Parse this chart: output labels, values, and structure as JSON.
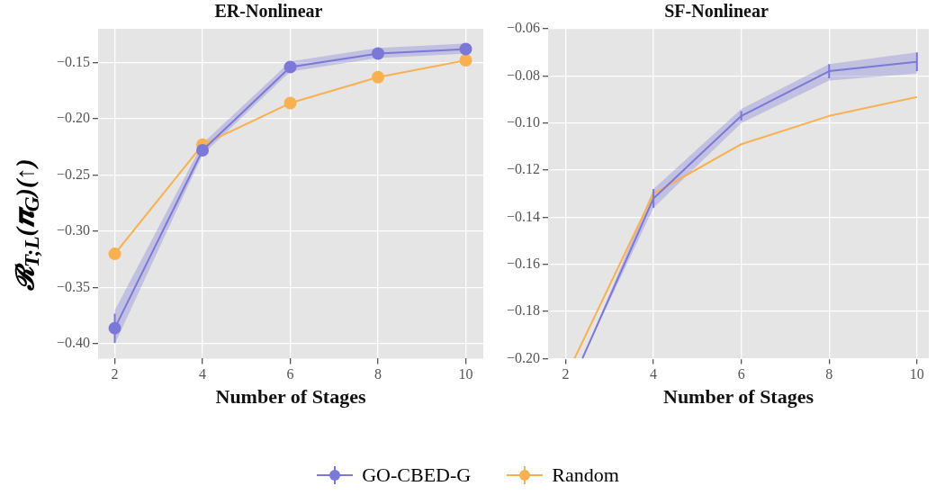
{
  "chart_data": [
    {
      "type": "line",
      "title": "ER-Nonlinear",
      "xlabel": "Number of Stages",
      "ylabel": "𝓡$_{T;L}$(𝝅$_{G}$)(↑)",
      "x": [
        2,
        4,
        6,
        8,
        10
      ],
      "xlim": [
        1.62,
        10.4
      ],
      "xticks": [
        2,
        4,
        6,
        8,
        10
      ],
      "ylim": [
        -0.413,
        -0.12
      ],
      "yticks": [
        {
          "value": -0.4,
          "label": "−0.40"
        },
        {
          "value": -0.35,
          "label": "−0.35"
        },
        {
          "value": -0.3,
          "label": "−0.30"
        },
        {
          "value": -0.25,
          "label": "−0.25"
        },
        {
          "value": -0.2,
          "label": "−0.20"
        },
        {
          "value": -0.15,
          "label": "−0.15"
        }
      ],
      "grid": true,
      "legend": "bottom",
      "marker": "circle",
      "series": [
        {
          "name": "GO-CBED-G",
          "color": "#7b78d8",
          "values": [
            -0.386,
            -0.228,
            -0.154,
            -0.142,
            -0.138
          ],
          "errors": [
            0.013,
            0.004,
            0.003,
            0.004,
            0.003
          ],
          "lower": [
            -0.4,
            -0.232,
            -0.158,
            -0.146,
            -0.142
          ],
          "upper": [
            -0.37,
            -0.222,
            -0.149,
            -0.137,
            -0.133
          ]
        },
        {
          "name": "Random",
          "color": "#f9b04f",
          "values": [
            -0.32,
            -0.223,
            -0.186,
            -0.163,
            -0.148
          ]
        }
      ]
    },
    {
      "type": "line",
      "title": "SF-Nonlinear",
      "xlabel": "Number of Stages",
      "xlim": [
        1.6,
        10.27
      ],
      "xticks": [
        2,
        4,
        6,
        8,
        10
      ],
      "ylim": [
        -0.2,
        -0.06
      ],
      "yticks": [
        {
          "value": -0.2,
          "label": "−0.20"
        },
        {
          "value": -0.18,
          "label": "−0.18"
        },
        {
          "value": -0.16,
          "label": "−0.16"
        },
        {
          "value": -0.14,
          "label": "−0.14"
        },
        {
          "value": -0.12,
          "label": "−0.12"
        },
        {
          "value": -0.1,
          "label": "−0.10"
        },
        {
          "value": -0.08,
          "label": "−0.08"
        },
        {
          "value": -0.06,
          "label": "−0.06"
        }
      ],
      "grid": true,
      "marker": "none",
      "series": [
        {
          "color": "#7b78d8",
          "x": [
            2.38,
            4,
            6,
            8,
            10
          ],
          "values": [
            -0.2,
            -0.132,
            -0.097,
            -0.078,
            -0.074
          ],
          "errors": [
            null,
            0.004,
            0.002,
            0.003,
            0.004
          ],
          "lower": [
            -0.2,
            -0.136,
            -0.1,
            -0.082,
            -0.079
          ],
          "upper": [
            -0.2,
            -0.128,
            -0.094,
            -0.075,
            -0.07
          ]
        },
        {
          "color": "#f9b04f",
          "x": [
            2.2,
            4,
            6,
            8,
            10
          ],
          "values": [
            -0.2,
            -0.13,
            -0.109,
            -0.097,
            -0.089
          ]
        }
      ]
    }
  ]
}
